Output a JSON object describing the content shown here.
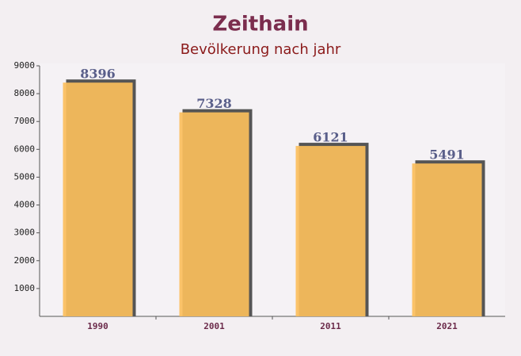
{
  "chart_data": {
    "type": "bar",
    "title": "Zeithain",
    "subtitle": "Bevölkerung nach jahr",
    "categories": [
      "1990",
      "2001",
      "2011",
      "2021"
    ],
    "values": [
      8396,
      7328,
      6121,
      5491
    ],
    "color": "#fbbf5c",
    "ylim": [
      0,
      9000
    ],
    "yticks": [
      1000,
      2000,
      3000,
      4000,
      5000,
      6000,
      7000,
      8000,
      9000
    ]
  }
}
